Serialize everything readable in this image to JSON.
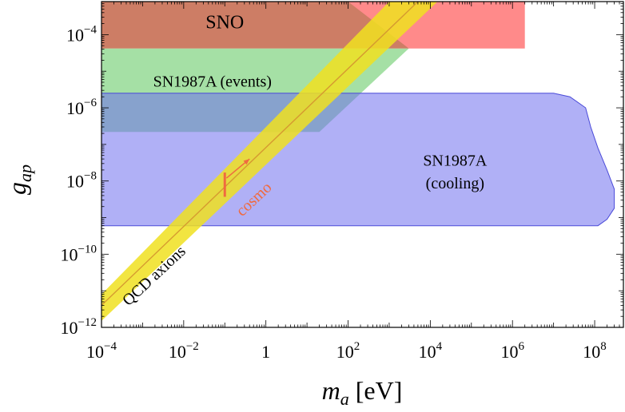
{
  "chart_data": {
    "type": "area",
    "x_scale": "log",
    "y_scale": "log",
    "xlim": [
      0.0001,
      500000000
    ],
    "ylim": [
      1e-12,
      0.0008
    ],
    "xlabel_main": "m",
    "xlabel_sub": "a",
    "xlabel_unit": " [eV]",
    "ylabel_main": "g",
    "ylabel_sub": "ap",
    "x_ticks": [
      {
        "base": "10",
        "exp": "−4",
        "value": 0.0001
      },
      {
        "base": "10",
        "exp": "−2",
        "value": 0.01
      },
      {
        "base": "1",
        "exp": "",
        "value": 1
      },
      {
        "base": "10",
        "exp": "2",
        "value": 100
      },
      {
        "base": "10",
        "exp": "4",
        "value": 10000
      },
      {
        "base": "10",
        "exp": "6",
        "value": 1000000
      },
      {
        "base": "10",
        "exp": "8",
        "value": 100000000
      }
    ],
    "y_ticks": [
      {
        "base": "10",
        "exp": "−12",
        "value": 1e-12
      },
      {
        "base": "10",
        "exp": "−10",
        "value": 1e-10
      },
      {
        "base": "10",
        "exp": "−8",
        "value": 1e-08
      },
      {
        "base": "10",
        "exp": "−6",
        "value": 1e-06
      },
      {
        "base": "10",
        "exp": "−4",
        "value": 0.0001
      }
    ],
    "regions": [
      {
        "label": "SNO",
        "color": "#ff8a8a",
        "opacity": 1,
        "points": [
          [
            0.0001,
            0.0008
          ],
          [
            2000000,
            0.0008
          ],
          [
            2000000,
            4.2e-05
          ],
          [
            0.0001,
            4.2e-05
          ]
        ]
      },
      {
        "label": "",
        "color": "#cd7d65",
        "opacity": 1,
        "points": [
          [
            0.0001,
            0.0008
          ],
          [
            100,
            0.0008
          ],
          [
            3000,
            4.2e-05
          ],
          [
            0.0001,
            4.2e-05
          ]
        ]
      },
      {
        "label": "SN1987A (events)",
        "color": "#a5e0a5",
        "opacity": 1,
        "points": [
          [
            0.0001,
            4.2e-05
          ],
          [
            3000,
            4.2e-05
          ],
          [
            20,
            2.2e-07
          ],
          [
            0.0001,
            2.2e-07
          ]
        ]
      },
      {
        "label": "SN1987A (cooling)",
        "color": "#7070ee",
        "opacity": 0.55,
        "points": [
          [
            0.0001,
            2.5e-06
          ],
          [
            10000000,
            2.5e-06
          ],
          [
            25000000,
            2e-06
          ],
          [
            60000000,
            1e-06
          ],
          [
            80000000,
            3e-07
          ],
          [
            120000000,
            8e-08
          ],
          [
            200000000,
            2e-08
          ],
          [
            300000000,
            6e-09
          ],
          [
            300000000,
            1.8e-09
          ],
          [
            200000000,
            9e-10
          ],
          [
            120000000,
            6e-10
          ],
          [
            0.0001,
            6e-10
          ]
        ]
      }
    ],
    "qcd_band": {
      "label": "QCD axions",
      "color": "#f0e020",
      "opacity": 0.85,
      "centerline_color": "#d69a30",
      "upper": [
        [
          0.0001,
          8e-12
        ],
        [
          1000,
          0.0008
        ]
      ],
      "lower": [
        [
          0.0001,
          1.5e-12
        ],
        [
          15000,
          0.0008
        ]
      ],
      "center": [
        [
          0.0001,
          4e-12
        ],
        [
          5000,
          0.0008
        ]
      ]
    },
    "cosmo": {
      "label": "cosmo",
      "color": "#f06a40",
      "marker_x": 0.1,
      "marker_y_range": [
        3.7e-09,
        1.7e-08
      ],
      "arrow_from": [
        0.11,
        1.2e-08
      ],
      "arrow_to": [
        0.4,
        4e-08
      ]
    },
    "annotations": [
      {
        "text": "SNO",
        "x": 0.1,
        "y": 0.00015,
        "size": 24,
        "color": "#000000"
      },
      {
        "text": "SN1987A (events)",
        "x": 0.05,
        "y": 3.8e-06,
        "size": 20,
        "color": "#000000"
      },
      {
        "text": "SN1987A",
        "x": 40000,
        "y": 2.6e-08,
        "size": 20,
        "color": "#000000"
      },
      {
        "text": "(cooling)",
        "x": 40000,
        "y": 6.2e-09,
        "size": 20,
        "color": "#000000"
      }
    ]
  }
}
